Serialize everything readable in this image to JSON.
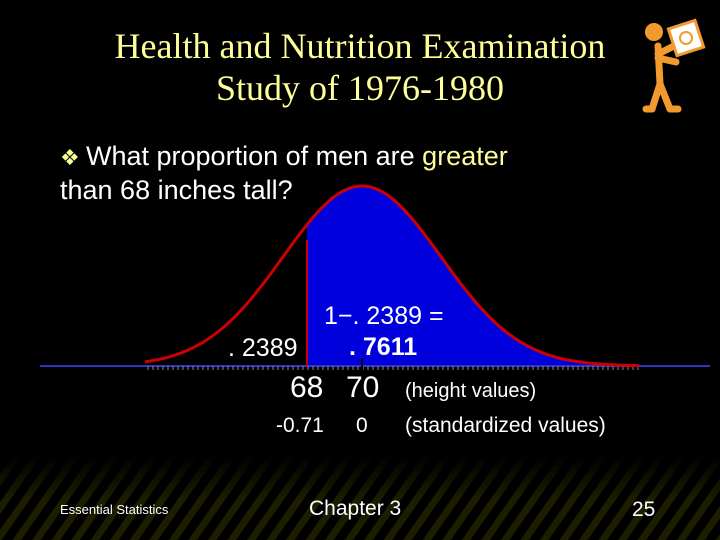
{
  "title": {
    "line1": "Health and Nutrition Examination",
    "line2": "Study of 1976-1980"
  },
  "question": {
    "bullet_icon": "diamond-bullet",
    "part1": "What proportion of men are ",
    "highlight": "greater",
    "part2": "than  68 inches tall?"
  },
  "figure": {
    "left_area_label": ". 2389",
    "expression_label": "1−. 2389 =",
    "result_label": ". 7611",
    "height_values": [
      "68",
      "70"
    ],
    "height_caption": "(height values)",
    "standardized_values": [
      "-0.71",
      "0"
    ],
    "standardized_caption": "(standardized values)",
    "colors": {
      "shaded_area": "#0000DD",
      "curve": "#CC0000",
      "axis": "#3333CC",
      "title": "#FFFF99"
    }
  },
  "footer": {
    "left": "Essential Statistics",
    "center": "Chapter 3",
    "page": "25"
  },
  "decorations": {
    "corner_figure": "stick-figure-holding-sign-icon"
  }
}
